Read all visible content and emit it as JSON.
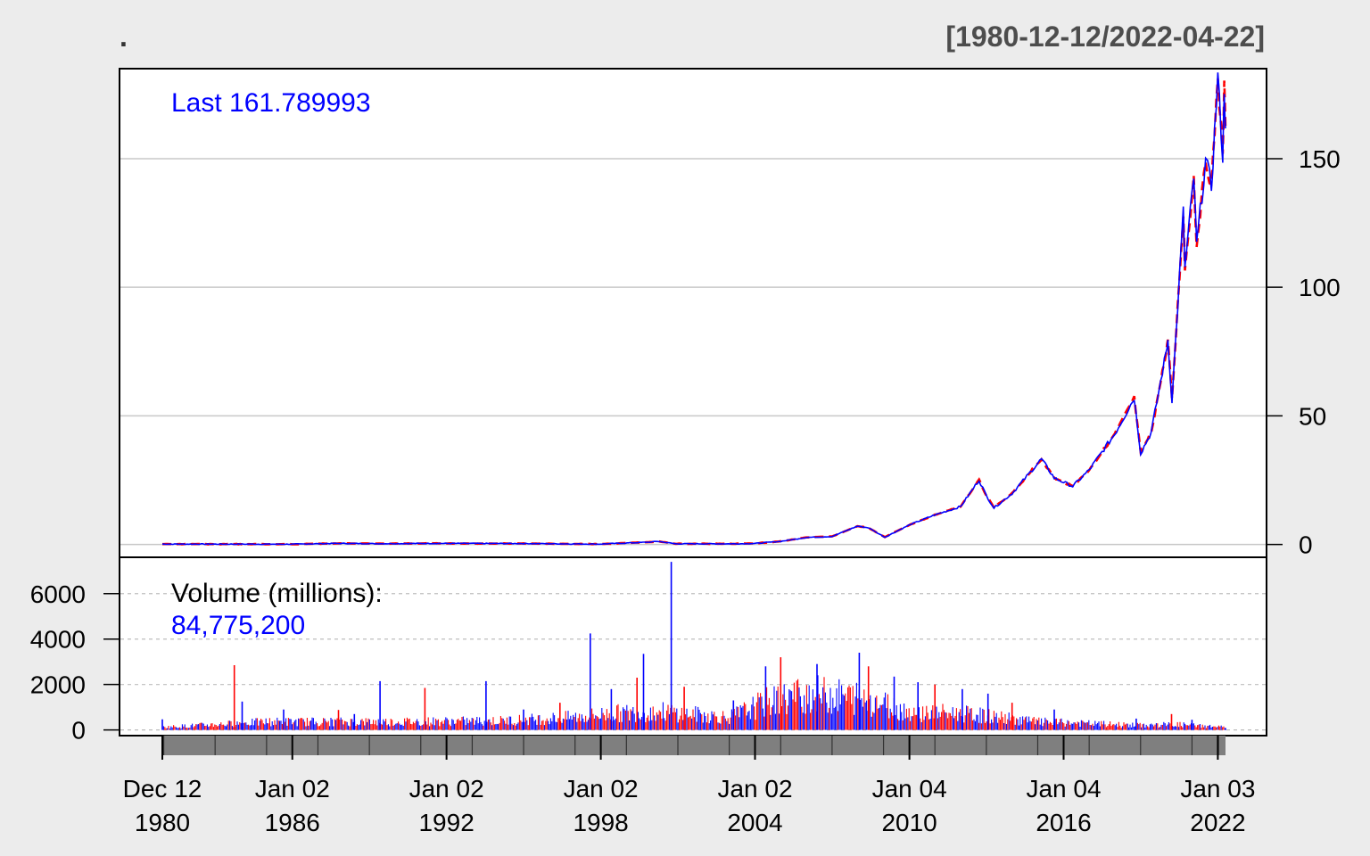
{
  "header": {
    "title": ".",
    "range": "[1980-12-12/2022-04-22]"
  },
  "colors": {
    "background": "#ececec",
    "panel": "#ffffff",
    "up": "#ff0000",
    "down": "#0000ff",
    "grid": "#c8c8c8",
    "axis_bar": "#7f7f7f"
  },
  "chart_data": {
    "type": "line",
    "subtype": "candlestick-with-volume",
    "price_panel": {
      "last_label": "Last 161.789993",
      "y_ticks": [
        0,
        50,
        100,
        150
      ],
      "y_tick_labels": [
        "0",
        "50",
        "100",
        "150"
      ],
      "ylim": [
        -5,
        185
      ],
      "y_axis_side": "right",
      "grid": true,
      "series": [
        {
          "values": [
            [
              "1980-12-12",
              0.13
            ],
            [
              "1983-06-01",
              0.12
            ],
            [
              "1986-01-02",
              0.09
            ],
            [
              "1987-09-01",
              0.4
            ],
            [
              "1989-06-01",
              0.3
            ],
            [
              "1991-06-01",
              0.4
            ],
            [
              "1995-01-01",
              0.35
            ],
            [
              "1997-12-01",
              0.13
            ],
            [
              "1999-12-01",
              0.9
            ],
            [
              "2000-03-22",
              1.2
            ],
            [
              "2000-12-01",
              0.25
            ],
            [
              "2003-04-01",
              0.24
            ],
            [
              "2004-01-02",
              0.38
            ],
            [
              "2005-01-01",
              1.2
            ],
            [
              "2006-01-01",
              2.7
            ],
            [
              "2007-01-01",
              3.1
            ],
            [
              "2007-12-27",
              7.1
            ],
            [
              "2008-06-01",
              6.5
            ],
            [
              "2009-01-20",
              2.8
            ],
            [
              "2010-01-04",
              7.6
            ],
            [
              "2011-01-01",
              11.5
            ],
            [
              "2012-01-01",
              14.7
            ],
            [
              "2012-09-19",
              25.0
            ],
            [
              "2013-01-01",
              19.0
            ],
            [
              "2013-04-19",
              14.2
            ],
            [
              "2014-01-01",
              19.8
            ],
            [
              "2015-02-23",
              33.2
            ],
            [
              "2015-08-24",
              25.8
            ],
            [
              "2016-05-12",
              22.6
            ],
            [
              "2017-01-03",
              29.0
            ],
            [
              "2018-01-01",
              43.0
            ],
            [
              "2018-10-03",
              57.0
            ],
            [
              "2019-01-03",
              35.5
            ],
            [
              "2019-06-01",
              43.5
            ],
            [
              "2020-01-01",
              75.0
            ],
            [
              "2020-01-24",
              79.6
            ],
            [
              "2020-03-23",
              56.0
            ],
            [
              "2020-08-31",
              129.0
            ],
            [
              "2020-09-23",
              107.0
            ],
            [
              "2021-01-26",
              143.0
            ],
            [
              "2021-03-08",
              116.4
            ],
            [
              "2021-07-14",
              149.2
            ],
            [
              "2021-10-04",
              139.1
            ],
            [
              "2022-01-03",
              182.0
            ],
            [
              "2022-03-14",
              150.6
            ],
            [
              "2022-04-04",
              178.4
            ],
            [
              "2022-04-22",
              161.79
            ]
          ]
        }
      ]
    },
    "volume_panel": {
      "label": "Volume (millions):",
      "last_value": "84,775,200",
      "y_ticks": [
        0,
        2000,
        4000,
        6000
      ],
      "y_tick_labels": [
        "0",
        "2000",
        "4000",
        "6000"
      ],
      "ylim": [
        -250,
        7600
      ],
      "y_axis_side": "left",
      "grid": true,
      "envelope": [
        [
          "1980-12-12",
          150
        ],
        [
          "1983-01-01",
          300
        ],
        [
          "1985-01-01",
          450
        ],
        [
          "1987-01-01",
          450
        ],
        [
          "1990-01-01",
          450
        ],
        [
          "1994-01-01",
          500
        ],
        [
          "1997-01-01",
          700
        ],
        [
          "1998-06-01",
          900
        ],
        [
          "2000-06-01",
          1000
        ],
        [
          "2003-01-01",
          700
        ],
        [
          "2004-06-01",
          1500
        ],
        [
          "2006-01-01",
          2000
        ],
        [
          "2008-06-01",
          1700
        ],
        [
          "2010-01-01",
          1000
        ],
        [
          "2012-01-01",
          900
        ],
        [
          "2013-06-01",
          700
        ],
        [
          "2015-01-01",
          450
        ],
        [
          "2017-01-01",
          350
        ],
        [
          "2019-01-01",
          250
        ],
        [
          "2020-06-01",
          300
        ],
        [
          "2022-04-22",
          150
        ]
      ],
      "spikes": [
        [
          "1980-12-12",
          470
        ],
        [
          "1983-10-01",
          2850
        ],
        [
          "1984-01-20",
          1250
        ],
        [
          "1985-09-01",
          900
        ],
        [
          "1987-10-20",
          880
        ],
        [
          "1988-06-01",
          700
        ],
        [
          "1989-06-01",
          2150
        ],
        [
          "1991-03-01",
          1850
        ],
        [
          "1993-07-16",
          2150
        ],
        [
          "1995-01-01",
          900
        ],
        [
          "1996-06-01",
          1200
        ],
        [
          "1997-08-06",
          4250
        ],
        [
          "1998-06-01",
          1800
        ],
        [
          "1999-06-01",
          2300
        ],
        [
          "1999-09-01",
          3350
        ],
        [
          "2000-09-29",
          7400
        ],
        [
          "2001-04-01",
          1900
        ],
        [
          "2003-03-01",
          1300
        ],
        [
          "2004-06-01",
          2800
        ],
        [
          "2005-01-01",
          3200
        ],
        [
          "2006-06-01",
          2900
        ],
        [
          "2008-01-23",
          3400
        ],
        [
          "2008-06-01",
          2800
        ],
        [
          "2009-06-01",
          2350
        ],
        [
          "2010-05-06",
          2100
        ],
        [
          "2011-01-01",
          2000
        ],
        [
          "2012-01-25",
          1800
        ],
        [
          "2013-01-24",
          1600
        ],
        [
          "2014-01-01",
          1200
        ],
        [
          "2015-08-24",
          900
        ],
        [
          "2018-11-01",
          500
        ],
        [
          "2020-03-16",
          700
        ],
        [
          "2021-01-01",
          450
        ],
        [
          "2022-04-22",
          85
        ]
      ]
    },
    "x_axis": {
      "range": [
        "1980-12-12",
        "2022-04-22"
      ],
      "tick_labels": [
        {
          "date": "1980-12-12",
          "line1": "Dec 12",
          "line2": "1980"
        },
        {
          "date": "1986-01-02",
          "line1": "Jan 02",
          "line2": "1986"
        },
        {
          "date": "1992-01-02",
          "line1": "Jan 02",
          "line2": "1992"
        },
        {
          "date": "1998-01-02",
          "line1": "Jan 02",
          "line2": "1998"
        },
        {
          "date": "2004-01-02",
          "line1": "Jan 02",
          "line2": "2004"
        },
        {
          "date": "2010-01-04",
          "line1": "Jan 04",
          "line2": "2010"
        },
        {
          "date": "2016-01-04",
          "line1": "Jan 04",
          "line2": "2016"
        },
        {
          "date": "2022-01-03",
          "line1": "Jan 03",
          "line2": "2022"
        }
      ]
    }
  }
}
